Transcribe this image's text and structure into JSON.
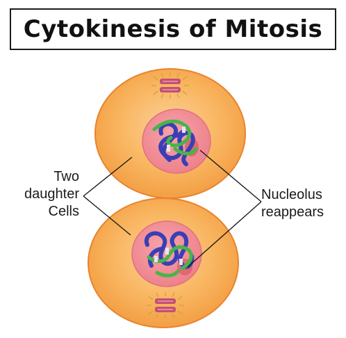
{
  "title": "Cytokinesis of Mitosis",
  "labels": {
    "daughter_cells": [
      "Two",
      "daughter",
      "Cells"
    ],
    "nucleolus": [
      "Nucleolus",
      "reappears"
    ]
  },
  "colors": {
    "cell_fill": "#f5a64a",
    "cell_inner": "#fbc27e",
    "cell_outline": "#e8832c",
    "nucleus_fill": "#f08a92",
    "nucleus_outline": "#e0707c",
    "nucleolus": "#e06872",
    "chromatin_blue": "#3a3fb5",
    "chromatin_green": "#46b549",
    "centrosome": "#c0506f",
    "leader_line": "#1a1a1a"
  },
  "icons": [
    "centrosome-icon",
    "nucleus-icon",
    "chromatin-icon"
  ]
}
